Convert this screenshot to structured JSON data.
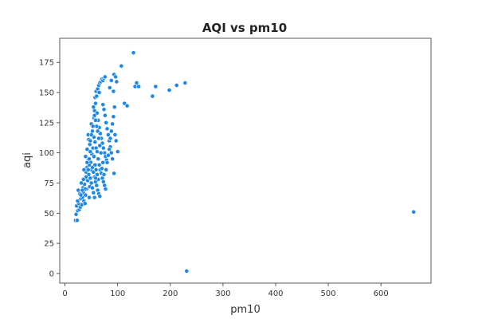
{
  "chart_data": {
    "type": "scatter",
    "title": "AQI vs pm10",
    "xlabel": "pm10",
    "ylabel": "aqi",
    "xlim": [
      -10,
      695
    ],
    "ylim": [
      -8,
      195
    ],
    "xticks": [
      0,
      100,
      200,
      300,
      400,
      500,
      600
    ],
    "yticks": [
      0,
      25,
      50,
      75,
      100,
      125,
      150,
      175
    ],
    "grid": false,
    "point_color": "#1e88e5",
    "point_edge_color": "#ffffff",
    "series": [
      {
        "points": [
          [
            20,
            44
          ],
          [
            23,
            44
          ],
          [
            21,
            49
          ],
          [
            24,
            52
          ],
          [
            22,
            56
          ],
          [
            27,
            53
          ],
          [
            26,
            58
          ],
          [
            24,
            60
          ],
          [
            29,
            55
          ],
          [
            30,
            62
          ],
          [
            28,
            66
          ],
          [
            25,
            69
          ],
          [
            32,
            57
          ],
          [
            33,
            63
          ],
          [
            35,
            67
          ],
          [
            36,
            60
          ],
          [
            34,
            71
          ],
          [
            38,
            58
          ],
          [
            39,
            65
          ],
          [
            41,
            70
          ],
          [
            37,
            74
          ],
          [
            40,
            84
          ],
          [
            42,
            88
          ],
          [
            36,
            86
          ],
          [
            39,
            97
          ],
          [
            44,
            94
          ],
          [
            45,
            82
          ],
          [
            43,
            77
          ],
          [
            47,
            72
          ],
          [
            46,
            63
          ],
          [
            48,
            79
          ],
          [
            50,
            86
          ],
          [
            49,
            92
          ],
          [
            51,
            99
          ],
          [
            53,
            104
          ],
          [
            47,
            107
          ],
          [
            45,
            111
          ],
          [
            52,
            118
          ],
          [
            50,
            124
          ],
          [
            55,
            129
          ],
          [
            56,
            135
          ],
          [
            54,
            138
          ],
          [
            58,
            141
          ],
          [
            57,
            146
          ],
          [
            59,
            151
          ],
          [
            60,
            147
          ],
          [
            62,
            153
          ],
          [
            64,
            156
          ],
          [
            66,
            158
          ],
          [
            68,
            159
          ],
          [
            65,
            150
          ],
          [
            70,
            161
          ],
          [
            72,
            160
          ],
          [
            74,
            162
          ],
          [
            76,
            163
          ],
          [
            61,
            133
          ],
          [
            63,
            127
          ],
          [
            65,
            121
          ],
          [
            67,
            116
          ],
          [
            69,
            112
          ],
          [
            71,
            108
          ],
          [
            73,
            104
          ],
          [
            75,
            100
          ],
          [
            77,
            97
          ],
          [
            79,
            94
          ],
          [
            55,
            113
          ],
          [
            57,
            109
          ],
          [
            59,
            104
          ],
          [
            61,
            101
          ],
          [
            63,
            95
          ],
          [
            65,
            90
          ],
          [
            67,
            86
          ],
          [
            69,
            83
          ],
          [
            71,
            79
          ],
          [
            73,
            76
          ],
          [
            75,
            73
          ],
          [
            77,
            70
          ],
          [
            52,
            88
          ],
          [
            54,
            84
          ],
          [
            56,
            80
          ],
          [
            58,
            76
          ],
          [
            60,
            73
          ],
          [
            62,
            69
          ],
          [
            64,
            66
          ],
          [
            66,
            64
          ],
          [
            46,
            90
          ],
          [
            48,
            101
          ],
          [
            44,
            115
          ],
          [
            42,
            103
          ],
          [
            40,
            80
          ],
          [
            38,
            70
          ],
          [
            35,
            78
          ],
          [
            33,
            69
          ],
          [
            31,
            75
          ],
          [
            30,
            65
          ],
          [
            55,
            97
          ],
          [
            57,
            90
          ],
          [
            59,
            86
          ],
          [
            61,
            82
          ],
          [
            63,
            78
          ],
          [
            72,
            140
          ],
          [
            74,
            136
          ],
          [
            76,
            131
          ],
          [
            78,
            125
          ],
          [
            80,
            120
          ],
          [
            82,
            115
          ],
          [
            84,
            110
          ],
          [
            86,
            105
          ],
          [
            88,
            100
          ],
          [
            90,
            95
          ],
          [
            78,
            86
          ],
          [
            80,
            92
          ],
          [
            82,
            98
          ],
          [
            84,
            103
          ],
          [
            86,
            112
          ],
          [
            88,
            118
          ],
          [
            90,
            124
          ],
          [
            92,
            130
          ],
          [
            94,
            138
          ],
          [
            92,
            151
          ],
          [
            85,
            154
          ],
          [
            88,
            160
          ],
          [
            93,
            165
          ],
          [
            96,
            163
          ],
          [
            98,
            159
          ],
          [
            95,
            115
          ],
          [
            97,
            110
          ],
          [
            100,
            101
          ],
          [
            93,
            83
          ],
          [
            70,
            87
          ],
          [
            72,
            92
          ],
          [
            74,
            82
          ],
          [
            68,
            100
          ],
          [
            66,
            106
          ],
          [
            64,
            112
          ],
          [
            62,
            118
          ],
          [
            60,
            122
          ],
          [
            58,
            127
          ],
          [
            56,
            131
          ],
          [
            53,
            122
          ],
          [
            50,
            115
          ],
          [
            48,
            110
          ],
          [
            46,
            95
          ],
          [
            44,
            86
          ],
          [
            42,
            92
          ],
          [
            50,
            75
          ],
          [
            52,
            71
          ],
          [
            54,
            67
          ],
          [
            56,
            63
          ],
          [
            58,
            79
          ],
          [
            107,
            172
          ],
          [
            130,
            183
          ],
          [
            113,
            141
          ],
          [
            118,
            139
          ],
          [
            133,
            155
          ],
          [
            136,
            158
          ],
          [
            140,
            155
          ],
          [
            166,
            147
          ],
          [
            172,
            155
          ],
          [
            198,
            152
          ],
          [
            212,
            156
          ],
          [
            228,
            158
          ],
          [
            662,
            51
          ],
          [
            231,
            2
          ]
        ]
      }
    ]
  }
}
